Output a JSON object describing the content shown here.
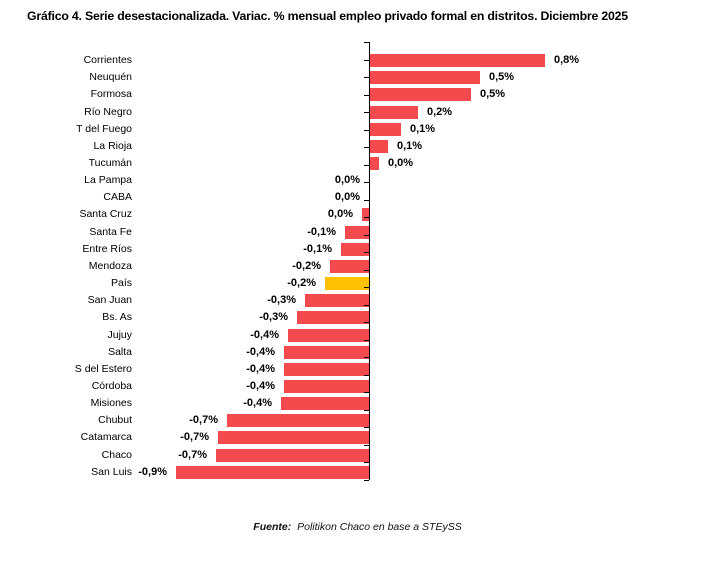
{
  "title": "Gráfico 4. Serie desestacionalizada. Variac. % mensual empleo privado formal en distritos. Diciembre 2025",
  "source": {
    "prefix": "Fuente:",
    "text": "Politikon Chaco en base a STEySS"
  },
  "colors": {
    "bar": "#F4494D",
    "highlight": "#FFC000",
    "axis": "#000000",
    "text": "#000000"
  },
  "chart_data": {
    "type": "bar",
    "orientation": "horizontal",
    "unit": "%",
    "decimal_separator": ",",
    "title": "Gráfico 4. Serie desestacionalizada. Variac. % mensual empleo privado formal en distritos. Diciembre 2025",
    "categories": [
      "Corrientes",
      "Neuquén",
      "Formosa",
      "Río Negro",
      "T del Fuego",
      "La Rioja",
      "Tucumán",
      "La Pampa",
      "CABA",
      "Santa Cruz",
      "Santa Fe",
      "Entre Ríos",
      "Mendoza",
      "País",
      "San Juan",
      "Bs. As",
      "Jujuy",
      "Salta",
      "S del Estero",
      "Córdoba",
      "Misiones",
      "Chubut",
      "Catamarca",
      "Chaco",
      "San Luis"
    ],
    "values": [
      0.8,
      0.5,
      0.5,
      0.2,
      0.1,
      0.1,
      0.0,
      0.0,
      0.0,
      0.0,
      -0.1,
      -0.1,
      -0.2,
      -0.2,
      -0.3,
      -0.3,
      -0.4,
      -0.4,
      -0.4,
      -0.4,
      -0.4,
      -0.7,
      -0.7,
      -0.7,
      -0.9
    ],
    "value_labels": [
      "0,8%",
      "0,5%",
      "0,5%",
      "0,2%",
      "0,1%",
      "0,1%",
      "0,0%",
      "0,0%",
      "0,0%",
      "0,0%",
      "-0,1%",
      "-0,1%",
      "-0,2%",
      "-0,2%",
      "-0,3%",
      "-0,3%",
      "-0,4%",
      "-0,4%",
      "-0,4%",
      "-0,4%",
      "-0,4%",
      "-0,7%",
      "-0,7%",
      "-0,7%",
      "-0,9%"
    ],
    "values_precise_est": [
      0.8,
      0.5,
      0.46,
      0.22,
      0.14,
      0.08,
      0.04,
      0.0,
      0.0,
      -0.03,
      -0.11,
      -0.13,
      -0.18,
      -0.2,
      -0.29,
      -0.33,
      -0.37,
      -0.39,
      -0.39,
      -0.39,
      -0.4,
      -0.65,
      -0.69,
      -0.7,
      -0.88
    ],
    "highlight_category": "País",
    "legend": "none",
    "gridlines": false,
    "zero_axis_line": true
  }
}
